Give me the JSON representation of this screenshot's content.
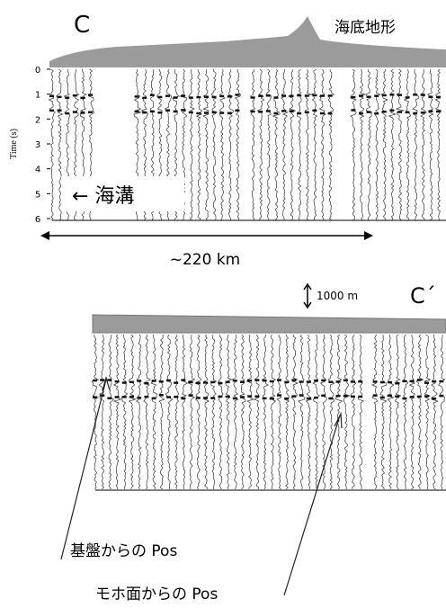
{
  "panel_c": {
    "label": "C",
    "bathymetry_label": "海底地形",
    "time_axis": {
      "title": "Time (s)",
      "ticks": [
        0,
        1,
        2,
        3,
        4,
        5,
        6
      ]
    },
    "trench_label": "← 海溝",
    "distance_label": "~220 km"
  },
  "panel_c_prime": {
    "label": "C´",
    "scale_label": "1000 m",
    "annotations": [
      "基盤からの Pos",
      "モホ面からの Pos"
    ]
  }
}
